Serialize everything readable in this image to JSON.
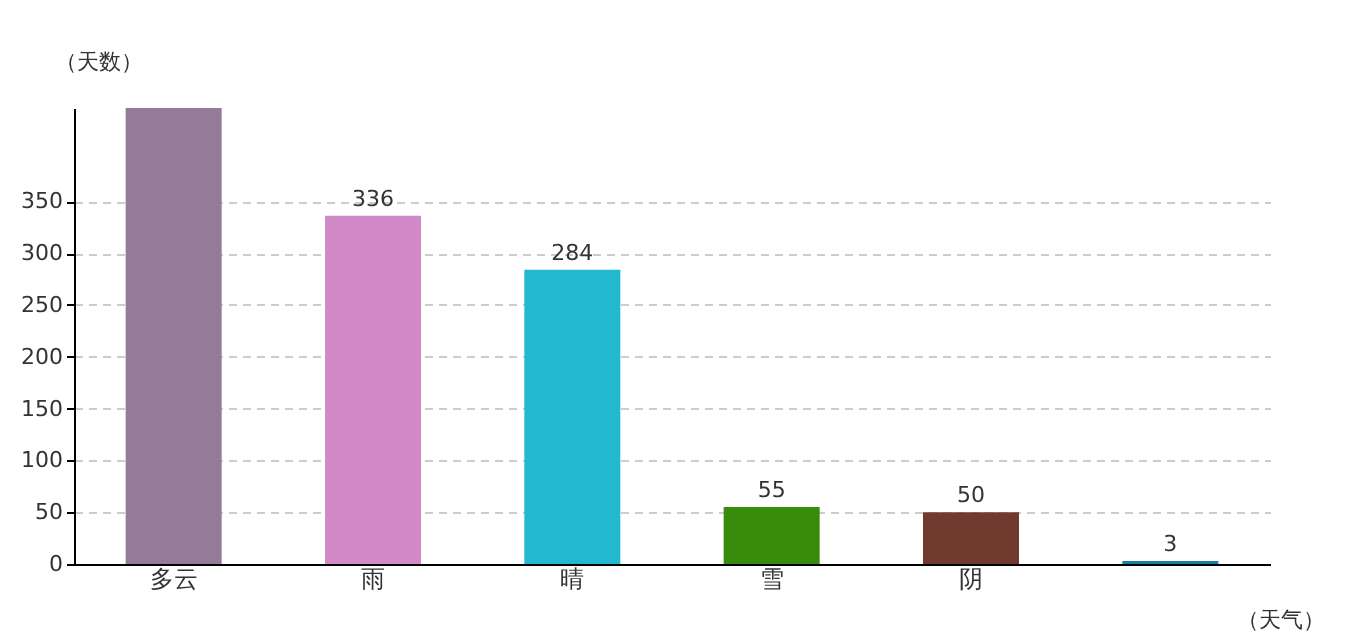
{
  "chart_data": {
    "type": "bar",
    "xlabel": "（天气）",
    "ylabel": "（天数）",
    "categories": [
      "多云",
      "雨",
      "晴",
      "雪",
      "阴",
      null
    ],
    "values": [
      440,
      336,
      284,
      55,
      50,
      3
    ],
    "value_labels": [
      null,
      "336",
      "284",
      "55",
      "50",
      "3"
    ],
    "colors": [
      "#957a9a",
      "#d18ac7",
      "#22b8d0",
      "#378d0b",
      "#713a2e",
      "#1a7ea6"
    ],
    "ylim": [
      0,
      440
    ],
    "yticks": [
      0,
      50,
      100,
      150,
      200,
      250,
      300,
      350
    ],
    "grid": "y",
    "legend": false
  }
}
